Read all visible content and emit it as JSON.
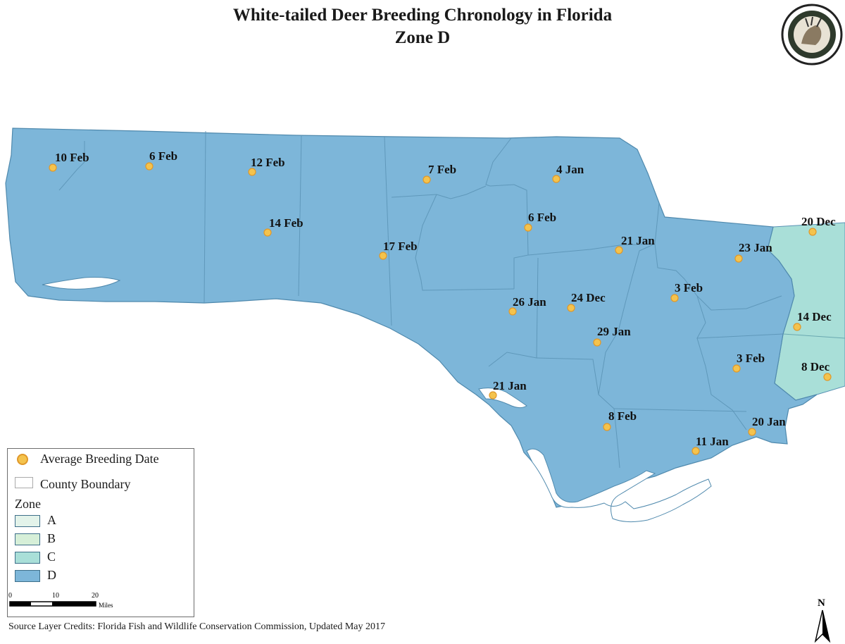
{
  "title": "White-tailed Deer Breeding Chronology in Florida",
  "subtitle": "Zone D",
  "colors": {
    "zone_d": "#7db6d9",
    "zone_c": "#a9dfd8",
    "zone_b": "#d6efd8",
    "zone_a": "#e3f3ea",
    "marker": "#f4c34d",
    "marker_ring": "#e0982a",
    "boundary": "#5a93b5"
  },
  "sites": [
    {
      "label": "10 Feb"
    },
    {
      "label": "6 Feb"
    },
    {
      "label": "12 Feb"
    },
    {
      "label": "7 Feb"
    },
    {
      "label": "4 Jan"
    },
    {
      "label": "14 Feb"
    },
    {
      "label": "6 Feb"
    },
    {
      "label": "17 Feb"
    },
    {
      "label": "21 Jan"
    },
    {
      "label": "20 Dec"
    },
    {
      "label": "23 Jan"
    },
    {
      "label": "3 Feb"
    },
    {
      "label": "26 Jan"
    },
    {
      "label": "24 Dec"
    },
    {
      "label": "29 Jan"
    },
    {
      "label": "14 Dec"
    },
    {
      "label": "3 Feb"
    },
    {
      "label": "8 Dec"
    },
    {
      "label": "21 Jan"
    },
    {
      "label": "8 Feb"
    },
    {
      "label": "20 Jan"
    },
    {
      "label": "11 Jan"
    }
  ],
  "legend": {
    "breeding_label": "Average Breeding Date",
    "county_label": "County Boundary",
    "zone_heading": "Zone",
    "zones": [
      {
        "label": "A",
        "color": "#e3f3ea"
      },
      {
        "label": "B",
        "color": "#d6efd8"
      },
      {
        "label": "C",
        "color": "#a9dfd8"
      },
      {
        "label": "D",
        "color": "#7db6d9"
      }
    ]
  },
  "scale": {
    "ticks": [
      "0",
      "10",
      "20"
    ],
    "unit": "Miles"
  },
  "north_label": "N",
  "source": "Source Layer Credits: Florida Fish and Wildlife Conservation Commission, Updated May 2017"
}
